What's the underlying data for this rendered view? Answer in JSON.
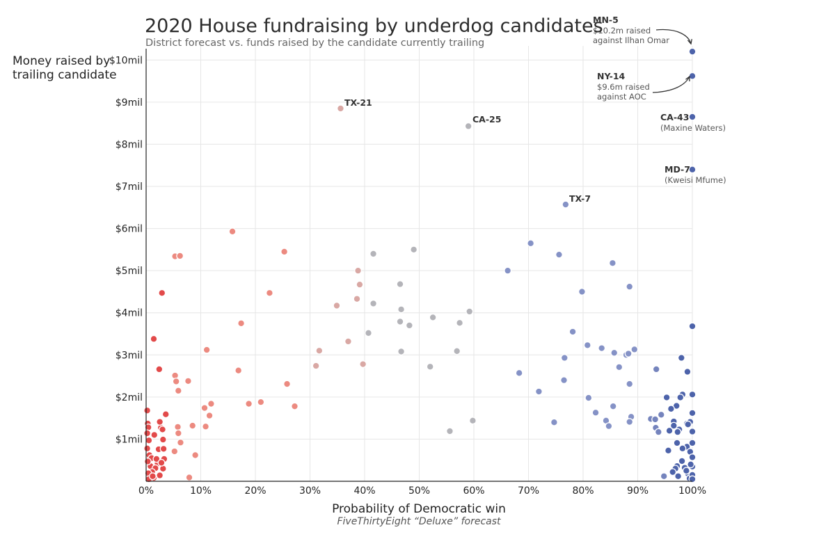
{
  "chart_data": {
    "type": "scatter",
    "title": "2020 House fundraising by underdog candidates",
    "subtitle": "District forecast vs. funds raised by the candidate currently trailing",
    "ylabel_lines": [
      "Money raised by",
      "trailing candidate"
    ],
    "xlabel": "Probability of Democratic win",
    "source": "FiveThirtyEight “Deluxe” forecast",
    "x_unit": "percent",
    "y_unit": "million dollars",
    "xlim": [
      0,
      100
    ],
    "ylim": [
      0,
      10.5
    ],
    "grid": true,
    "x_ticks": [
      0,
      10,
      20,
      30,
      40,
      50,
      60,
      70,
      80,
      90,
      100
    ],
    "x_tick_labels": [
      "0%",
      "10%",
      "20%",
      "30%",
      "40%",
      "50%",
      "60%",
      "70%",
      "80%",
      "90%",
      "100%"
    ],
    "y_ticks": [
      1,
      2,
      3,
      4,
      5,
      6,
      7,
      8,
      9,
      10
    ],
    "y_tick_labels": [
      "$1mil",
      "$2mil",
      "$3mil",
      "$4mil",
      "$5mil",
      "$6mil",
      "$7mil",
      "$8mil",
      "$9mil",
      "$10mil"
    ],
    "colors": {
      "strong_red": "#e24a4a",
      "light_red": "#ec8a80",
      "gray": "#b4b4b9",
      "light_blue": "#8592c6",
      "strong_blue": "#4d63aa"
    },
    "annotations": [
      {
        "label": "MN-5",
        "notes": [
          "$10.2m raised",
          "against Ilhan Omar"
        ],
        "x": 100,
        "y": 10.2,
        "arrow": true
      },
      {
        "label": "NY-14",
        "notes": [
          "$9.6m raised",
          "against AOC"
        ],
        "x": 100,
        "y": 9.62,
        "arrow": true
      },
      {
        "label": "CA-43",
        "notes": [
          "(Maxine Waters)"
        ],
        "x": 100,
        "y": 8.65,
        "arrow": false
      },
      {
        "label": "MD-7",
        "notes": [
          "(Kweisi Mfume)"
        ],
        "x": 100,
        "y": 7.4,
        "arrow": false
      },
      {
        "label": "TX-21",
        "notes": [],
        "x": 35.6,
        "y": 8.85,
        "arrow": false
      },
      {
        "label": "CA-25",
        "notes": [],
        "x": 59,
        "y": 8.43,
        "arrow": false
      },
      {
        "label": "TX-7",
        "notes": [],
        "x": 76.8,
        "y": 6.57,
        "arrow": false
      }
    ],
    "points": [
      [
        100,
        10.2
      ],
      [
        100,
        9.62
      ],
      [
        100,
        8.65
      ],
      [
        100,
        7.4
      ],
      [
        35.6,
        8.85
      ],
      [
        59,
        8.43
      ],
      [
        76.8,
        6.57
      ],
      [
        15.8,
        5.93
      ],
      [
        25.3,
        5.45
      ],
      [
        5.3,
        5.34
      ],
      [
        6.2,
        5.35
      ],
      [
        2.9,
        4.47
      ],
      [
        22.6,
        4.47
      ],
      [
        17.4,
        3.75
      ],
      [
        1.4,
        3.38
      ],
      [
        11.1,
        3.12
      ],
      [
        2.4,
        2.66
      ],
      [
        16.9,
        2.63
      ],
      [
        5.3,
        2.51
      ],
      [
        5.5,
        2.37
      ],
      [
        7.7,
        2.38
      ],
      [
        5.9,
        2.15
      ],
      [
        3.6,
        1.59
      ],
      [
        11.9,
        1.84
      ],
      [
        18.8,
        1.84
      ],
      [
        21.0,
        1.88
      ],
      [
        10.7,
        1.74
      ],
      [
        11.6,
        1.56
      ],
      [
        10.9,
        1.3
      ],
      [
        8.5,
        1.32
      ],
      [
        5.8,
        1.29
      ],
      [
        9.0,
        0.62
      ],
      [
        6.3,
        0.92
      ],
      [
        7.9,
        0.09
      ],
      [
        2.7,
        1.27
      ],
      [
        5.9,
        1.14
      ],
      [
        5.2,
        0.71
      ],
      [
        38.8,
        5.0
      ],
      [
        39.1,
        4.67
      ],
      [
        34.9,
        4.17
      ],
      [
        38.6,
        4.33
      ],
      [
        37.0,
        3.32
      ],
      [
        31.7,
        3.1
      ],
      [
        31.1,
        2.74
      ],
      [
        39.7,
        2.78
      ],
      [
        25.8,
        2.31
      ],
      [
        27.2,
        1.78
      ],
      [
        41.6,
        5.4
      ],
      [
        49.0,
        5.5
      ],
      [
        46.5,
        4.68
      ],
      [
        41.6,
        4.22
      ],
      [
        46.7,
        4.08
      ],
      [
        52.5,
        3.89
      ],
      [
        57.4,
        3.76
      ],
      [
        59.2,
        4.03
      ],
      [
        46.5,
        3.79
      ],
      [
        48.2,
        3.7
      ],
      [
        40.7,
        3.52
      ],
      [
        56.9,
        3.09
      ],
      [
        46.7,
        3.08
      ],
      [
        52.0,
        2.72
      ],
      [
        59.8,
        1.44
      ],
      [
        55.6,
        1.19
      ],
      [
        70.4,
        5.65
      ],
      [
        66.2,
        5.0
      ],
      [
        75.6,
        5.38
      ],
      [
        85.4,
        5.18
      ],
      [
        79.8,
        4.5
      ],
      [
        88.5,
        4.62
      ],
      [
        78.1,
        3.55
      ],
      [
        80.8,
        3.23
      ],
      [
        83.4,
        3.16
      ],
      [
        85.7,
        3.05
      ],
      [
        89.4,
        3.13
      ],
      [
        87.9,
        3.0
      ],
      [
        88.3,
        3.03
      ],
      [
        76.6,
        2.93
      ],
      [
        86.6,
        2.71
      ],
      [
        68.3,
        2.57
      ],
      [
        76.5,
        2.4
      ],
      [
        88.5,
        2.31
      ],
      [
        71.9,
        2.13
      ],
      [
        81.0,
        1.98
      ],
      [
        85.5,
        1.78
      ],
      [
        82.3,
        1.63
      ],
      [
        84.2,
        1.44
      ],
      [
        84.7,
        1.31
      ],
      [
        88.8,
        1.53
      ],
      [
        88.5,
        1.41
      ],
      [
        74.7,
        1.4
      ],
      [
        93.4,
        2.66
      ],
      [
        92.4,
        1.48
      ],
      [
        93.2,
        1.47
      ],
      [
        93.3,
        1.27
      ],
      [
        94.3,
        1.58
      ],
      [
        93.8,
        1.17
      ],
      [
        100,
        3.68
      ],
      [
        98.0,
        2.93
      ],
      [
        99.1,
        2.6
      ],
      [
        98.2,
        2.06
      ],
      [
        100,
        2.06
      ],
      [
        97.8,
        1.99
      ],
      [
        97.1,
        1.79
      ],
      [
        100,
        1.62
      ],
      [
        96.1,
        1.72
      ],
      [
        95.3,
        1.99
      ],
      [
        96.6,
        1.42
      ],
      [
        97.6,
        1.23
      ],
      [
        99.0,
        1.37
      ],
      [
        96.6,
        1.32
      ],
      [
        100,
        1.18
      ],
      [
        95.8,
        1.2
      ],
      [
        97.3,
        1.17
      ],
      [
        99.6,
        1.41
      ],
      [
        99.2,
        1.35
      ],
      [
        97.2,
        0.91
      ],
      [
        99.0,
        0.82
      ],
      [
        100,
        0.91
      ],
      [
        98.2,
        0.78
      ],
      [
        95.6,
        0.73
      ],
      [
        99.6,
        0.7
      ],
      [
        100,
        0.57
      ],
      [
        98.1,
        0.48
      ],
      [
        100,
        0.35
      ],
      [
        97.2,
        0.36
      ],
      [
        98.6,
        0.32
      ],
      [
        99.2,
        0.18
      ],
      [
        96.9,
        0.3
      ],
      [
        99.5,
        0.07
      ],
      [
        94.8,
        0.12
      ],
      [
        96.4,
        0.22
      ],
      [
        97.4,
        0.12
      ],
      [
        98.9,
        0.25
      ],
      [
        100,
        0.15
      ],
      [
        100,
        0.05
      ],
      [
        99.7,
        0.4
      ],
      [
        0.2,
        1.68
      ],
      [
        0.3,
        1.37
      ],
      [
        0.4,
        1.28
      ],
      [
        0.2,
        1.14
      ],
      [
        2.5,
        1.41
      ],
      [
        3.0,
        1.23
      ],
      [
        1.5,
        1.1
      ],
      [
        0.5,
        0.97
      ],
      [
        3.1,
        0.99
      ],
      [
        2.3,
        0.76
      ],
      [
        3.2,
        0.77
      ],
      [
        0.6,
        0.62
      ],
      [
        1.0,
        0.55
      ],
      [
        3.3,
        0.53
      ],
      [
        2.1,
        0.42
      ],
      [
        0.8,
        0.36
      ],
      [
        1.7,
        0.31
      ],
      [
        3.1,
        0.3
      ],
      [
        1.1,
        0.22
      ],
      [
        0.4,
        0.19
      ],
      [
        2.5,
        0.14
      ],
      [
        1.4,
        0.08
      ],
      [
        0.5,
        0.05
      ],
      [
        0.2,
        0.78
      ],
      [
        1.9,
        0.53
      ],
      [
        2.8,
        0.44
      ],
      [
        0.3,
        0.47
      ],
      [
        1.2,
        0.12
      ]
    ]
  }
}
